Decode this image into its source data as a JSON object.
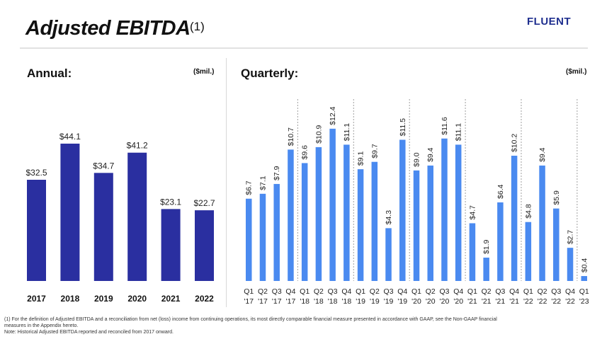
{
  "header": {
    "title": "Adjusted EBITDA",
    "title_note": "(1)",
    "logo": "FLUENT"
  },
  "annual": {
    "heading": "Annual:",
    "unit": "($mil.)"
  },
  "quarterly": {
    "heading": "Quarterly:",
    "unit": "($mil.)"
  },
  "footnotes": [
    "(1) For the definition of Adjusted EBITDA and a reconciliation from net (loss) income from continuing operations, its most directly comparable financial measure presented in accordance with GAAP, see the Non-GAAP financial measures in the Appendix hereto.",
    "Note: Historical Adjusted EBITDA reported and reconciled from 2017 onward."
  ],
  "colors": {
    "annual_bar": "#2a2fa0",
    "quarterly_bar": "#4a8af0",
    "logo": "#1f2f8f"
  },
  "chart_data": [
    {
      "type": "bar",
      "title": "Annual:",
      "categories": [
        "2017",
        "2018",
        "2019",
        "2020",
        "2021",
        "2022"
      ],
      "values": [
        32.5,
        44.1,
        34.7,
        41.2,
        23.1,
        22.7
      ],
      "labels": [
        "$32.5",
        "$44.1",
        "$34.7",
        "$41.2",
        "$23.1",
        "$22.7"
      ],
      "ylim": [
        0,
        55
      ],
      "grid": false
    },
    {
      "type": "bar",
      "title": "Quarterly:",
      "categories": [
        [
          "Q1",
          "'17"
        ],
        [
          "Q2",
          "'17"
        ],
        [
          "Q3",
          "'17"
        ],
        [
          "Q4",
          "'17"
        ],
        [
          "Q1",
          "'18"
        ],
        [
          "Q2",
          "'18"
        ],
        [
          "Q3",
          "'18"
        ],
        [
          "Q4",
          "'18"
        ],
        [
          "Q1",
          "'19"
        ],
        [
          "Q2",
          "'19"
        ],
        [
          "Q3",
          "'19"
        ],
        [
          "Q4",
          "'19"
        ],
        [
          "Q1",
          "'20"
        ],
        [
          "Q2",
          "'20"
        ],
        [
          "Q3",
          "'20"
        ],
        [
          "Q4",
          "'20"
        ],
        [
          "Q1",
          "'21"
        ],
        [
          "Q2",
          "'21"
        ],
        [
          "Q3",
          "'21"
        ],
        [
          "Q4",
          "'21"
        ],
        [
          "Q1",
          "'22"
        ],
        [
          "Q2",
          "'22"
        ],
        [
          "Q3",
          "'22"
        ],
        [
          "Q4",
          "'22"
        ],
        [
          "Q1",
          "'23"
        ]
      ],
      "values": [
        6.7,
        7.1,
        7.9,
        10.7,
        9.6,
        10.9,
        12.4,
        11.1,
        9.1,
        9.7,
        4.3,
        11.5,
        9.0,
        9.4,
        11.6,
        11.1,
        4.7,
        1.9,
        6.4,
        10.2,
        4.8,
        9.4,
        5.9,
        2.7,
        0.4
      ],
      "labels": [
        "$6.7",
        "$7.1",
        "$7.9",
        "$10.7",
        "$9.6",
        "$10.9",
        "$12.4",
        "$11.1",
        "$9.1",
        "$9.7",
        "$4.3",
        "$11.5",
        "$9.0",
        "$9.4",
        "$11.6",
        "$11.1",
        "$4.7",
        "$1.9",
        "$6.4",
        "$10.2",
        "$4.8",
        "$9.4",
        "$5.9",
        "$2.7",
        "$0.4"
      ],
      "ylim": [
        0,
        12.4
      ],
      "grid": false,
      "year_separators": true
    }
  ]
}
